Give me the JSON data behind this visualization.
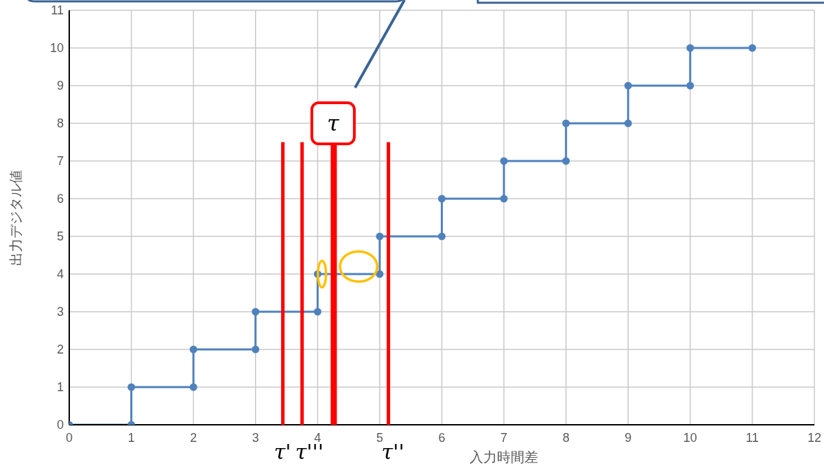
{
  "chart_data": {
    "type": "line",
    "xlabel": "入力時間差",
    "ylabel": "出力デジタル値",
    "series": [
      {
        "color": "#4f81bd",
        "x": [
          0,
          1,
          1,
          2,
          2,
          3,
          3,
          4,
          4,
          5,
          5,
          6,
          6,
          7,
          7,
          8,
          8,
          9,
          9,
          10,
          10,
          11
        ],
        "values": [
          0,
          0,
          1,
          1,
          2,
          2,
          3,
          3,
          4,
          4,
          5,
          5,
          6,
          6,
          7,
          7,
          8,
          8,
          9,
          9,
          10,
          10
        ]
      }
    ],
    "xlim": [
      0,
      12
    ],
    "xticks": [
      0,
      1,
      2,
      3,
      4,
      5,
      6,
      7,
      8,
      9,
      10,
      11,
      12
    ],
    "ylim": [
      0,
      11
    ],
    "yticks": [
      0,
      1,
      2,
      3,
      4,
      5,
      6,
      7,
      8,
      9,
      10,
      11
    ],
    "grid": true,
    "marker": "circle",
    "line_style": "solid",
    "ref_lines": [
      {
        "axis": "x",
        "value": 3.44,
        "label": "τ'",
        "color": "#ff0000"
      },
      {
        "axis": "x",
        "value": 3.75,
        "label": "τ'''",
        "color": "#ff0000"
      },
      {
        "axis": "x",
        "value": 4.26,
        "label": null,
        "color": "#ff0000"
      },
      {
        "axis": "x",
        "value": 5.14,
        "label": "τ''",
        "color": "#ff0000"
      }
    ],
    "annotations": [
      "τ"
    ]
  }
}
